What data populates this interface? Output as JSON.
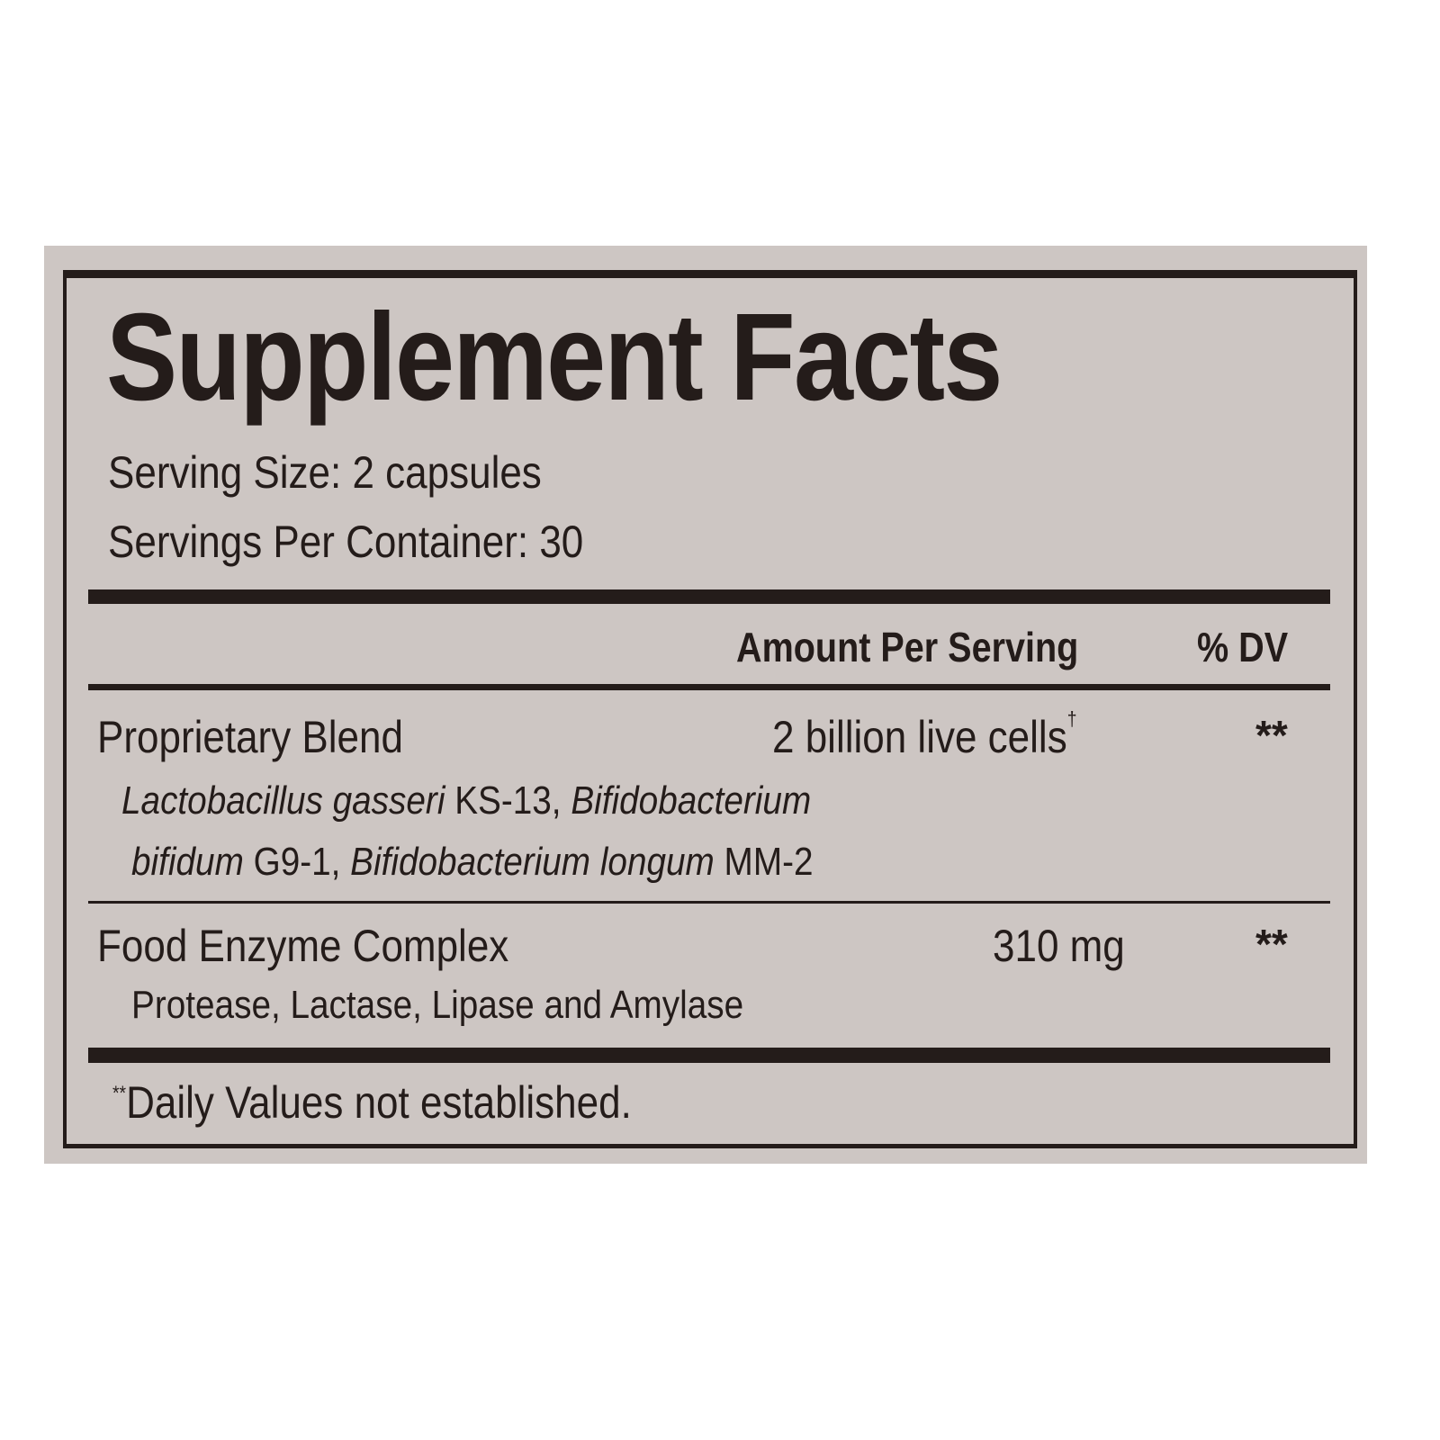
{
  "title": "Supplement Facts",
  "serving_size": "Serving Size: 2 capsules",
  "servings_per_container": "Servings Per Container: 30",
  "header": {
    "amount": "Amount Per Serving",
    "dv": "% DV"
  },
  "rows": [
    {
      "name": "Proprietary Blend",
      "amount": "2 billion live cells",
      "amount_mark": "†",
      "dv": "**",
      "sub_line1": [
        {
          "text": "Lactobacillus gasseri",
          "italic": true
        },
        {
          "text": " KS-13, ",
          "italic": false
        },
        {
          "text": "Bifidobacterium",
          "italic": true
        }
      ],
      "sub_line2": [
        {
          "text": "bifidum",
          "italic": true
        },
        {
          "text": " G9-1, ",
          "italic": false
        },
        {
          "text": "Bifidobacterium longum",
          "italic": true
        },
        {
          "text": " MM-2",
          "italic": false
        }
      ]
    },
    {
      "name": "Food Enzyme Complex",
      "amount": "310 mg",
      "dv": "**",
      "sub": "Protease, Lactase, Lipase and Amylase"
    }
  ],
  "footnote": {
    "mark": "**",
    "text": "Daily Values not established."
  }
}
